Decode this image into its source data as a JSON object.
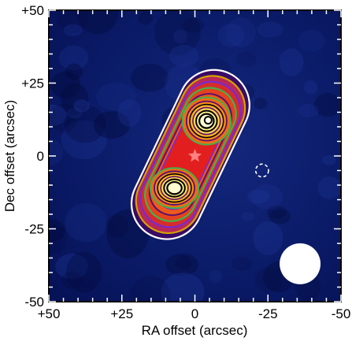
{
  "chart_data": {
    "type": "heatmap",
    "title": "",
    "xlabel": "RA offset (arcsec)",
    "ylabel": "Dec offset (arcsec)",
    "xlim": [
      50,
      -50
    ],
    "ylim": [
      -50,
      50
    ],
    "x_ticks": [
      {
        "value": 50,
        "label": "+50"
      },
      {
        "value": 25,
        "label": "+25"
      },
      {
        "value": 0,
        "label": "0"
      },
      {
        "value": -25,
        "label": "-25"
      },
      {
        "value": -50,
        "label": "-50"
      }
    ],
    "y_ticks": [
      {
        "value": 50,
        "label": "+50"
      },
      {
        "value": 25,
        "label": "+25"
      },
      {
        "value": 0,
        "label": "0"
      },
      {
        "value": -25,
        "label": "-25"
      },
      {
        "value": -50,
        "label": "-50"
      }
    ],
    "emission_peaks": [
      {
        "ra": -4,
        "dec": 12,
        "relative_peak": 1.0
      },
      {
        "ra": 7,
        "dec": -11,
        "relative_peak": 1.0
      }
    ],
    "source_marker": {
      "ra": 0,
      "dec": 0,
      "shape": "star",
      "color": "#ff8080"
    },
    "negative_contour": {
      "ra": -23,
      "dec": -5,
      "radius": 2.2
    },
    "beam": {
      "ra": -36,
      "dec": -37,
      "radius": 7
    },
    "contour_colors": [
      "#ffffff",
      "#d4a200",
      "#7a2ad0",
      "#44b24a",
      "#5a1070",
      "#000000"
    ],
    "background_color": "#0a1c6a"
  }
}
